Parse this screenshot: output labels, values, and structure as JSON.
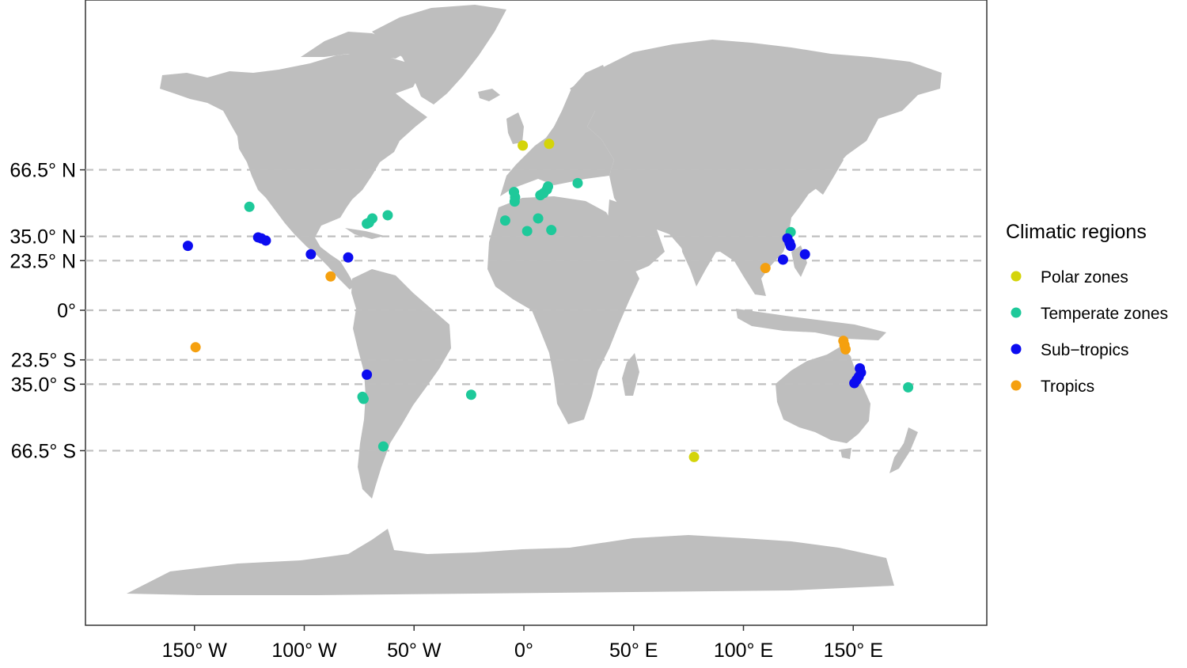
{
  "map": {
    "projection": "equirectangular",
    "lon_range": [
      -180,
      180
    ],
    "lat_range": [
      -90,
      90
    ],
    "x_ticks": [
      {
        "lon": -150,
        "label": "150° W"
      },
      {
        "lon": -100,
        "label": "100° W"
      },
      {
        "lon": -50,
        "label": "50° W"
      },
      {
        "lon": 0,
        "label": "0°"
      },
      {
        "lon": 50,
        "label": "50° E"
      },
      {
        "lon": 100,
        "label": "100° E"
      },
      {
        "lon": 150,
        "label": "150° E"
      }
    ],
    "lat_lines": [
      {
        "lat": 66.5,
        "label": "66.5° N"
      },
      {
        "lat": 35.0,
        "label": "35.0° N"
      },
      {
        "lat": 23.5,
        "label": "23.5° N"
      },
      {
        "lat": 0,
        "label": "0°"
      },
      {
        "lat": -23.5,
        "label": "23.5° S"
      },
      {
        "lat": -35.0,
        "label": "35.0° S"
      },
      {
        "lat": -66.5,
        "label": "66.5° S"
      }
    ],
    "land_color": "#bebebe",
    "gridline_color": "#bfbfbf"
  },
  "legend": {
    "title": "Climatic regions",
    "placement": "right",
    "items": [
      {
        "key": "polar",
        "label": "Polar zones",
        "color": "#d4d40a"
      },
      {
        "key": "temperate",
        "label": "Temperate zones",
        "color": "#1ec99a"
      },
      {
        "key": "subtropics",
        "label": "Sub−tropics",
        "color": "#0c0cf0"
      },
      {
        "key": "tropics",
        "label": "Tropics",
        "color": "#f5a00f"
      }
    ]
  },
  "sites": [
    {
      "lon": -0.5,
      "lat": 78.0,
      "region": "polar"
    },
    {
      "lon": 11.5,
      "lat": 78.8,
      "region": "polar"
    },
    {
      "lon": 77.5,
      "lat": -69.5,
      "region": "polar"
    },
    {
      "lon": -125.0,
      "lat": 49.0,
      "region": "temperate"
    },
    {
      "lon": -71.5,
      "lat": 41.0,
      "region": "temperate"
    },
    {
      "lon": -70.5,
      "lat": 41.5,
      "region": "temperate"
    },
    {
      "lon": -69.0,
      "lat": 43.5,
      "region": "temperate"
    },
    {
      "lon": -62.0,
      "lat": 45.0,
      "region": "temperate"
    },
    {
      "lon": -4.5,
      "lat": 56.0,
      "region": "temperate"
    },
    {
      "lon": -4.0,
      "lat": 53.5,
      "region": "temperate"
    },
    {
      "lon": -4.2,
      "lat": 51.5,
      "region": "temperate"
    },
    {
      "lon": 7.5,
      "lat": 54.5,
      "region": "temperate"
    },
    {
      "lon": 9.0,
      "lat": 55.5,
      "region": "temperate"
    },
    {
      "lon": 10.5,
      "lat": 57.2,
      "region": "temperate"
    },
    {
      "lon": 11.0,
      "lat": 58.6,
      "region": "temperate"
    },
    {
      "lon": 24.5,
      "lat": 60.2,
      "region": "temperate"
    },
    {
      "lon": -8.5,
      "lat": 42.5,
      "region": "temperate"
    },
    {
      "lon": 6.5,
      "lat": 43.5,
      "region": "temperate"
    },
    {
      "lon": 1.5,
      "lat": 37.5,
      "region": "temperate"
    },
    {
      "lon": 12.5,
      "lat": 38.0,
      "region": "temperate"
    },
    {
      "lon": 121.5,
      "lat": 37.0,
      "region": "temperate"
    },
    {
      "lon": 175.0,
      "lat": -36.5,
      "region": "temperate"
    },
    {
      "lon": -73.5,
      "lat": -41.0,
      "region": "temperate"
    },
    {
      "lon": -73.0,
      "lat": -42.0,
      "region": "temperate"
    },
    {
      "lon": -24.0,
      "lat": -40.0,
      "region": "temperate"
    },
    {
      "lon": -64.0,
      "lat": -64.5,
      "region": "temperate"
    },
    {
      "lon": -121.0,
      "lat": 34.5,
      "region": "subtropics"
    },
    {
      "lon": -119.5,
      "lat": 34.0,
      "region": "subtropics"
    },
    {
      "lon": -117.5,
      "lat": 33.0,
      "region": "subtropics"
    },
    {
      "lon": -153.0,
      "lat": 30.5,
      "region": "subtropics"
    },
    {
      "lon": -97.0,
      "lat": 26.5,
      "region": "subtropics"
    },
    {
      "lon": -80.0,
      "lat": 25.0,
      "region": "subtropics"
    },
    {
      "lon": 120.0,
      "lat": 34.0,
      "region": "subtropics"
    },
    {
      "lon": 121.0,
      "lat": 32.0,
      "region": "subtropics"
    },
    {
      "lon": 121.5,
      "lat": 30.5,
      "region": "subtropics"
    },
    {
      "lon": 118.0,
      "lat": 24.0,
      "region": "subtropics"
    },
    {
      "lon": 128.0,
      "lat": 26.5,
      "region": "subtropics"
    },
    {
      "lon": -71.5,
      "lat": -30.5,
      "region": "subtropics"
    },
    {
      "lon": 153.0,
      "lat": -27.5,
      "region": "subtropics"
    },
    {
      "lon": 153.5,
      "lat": -29.5,
      "region": "subtropics"
    },
    {
      "lon": 152.5,
      "lat": -31.5,
      "region": "subtropics"
    },
    {
      "lon": 151.5,
      "lat": -33.0,
      "region": "subtropics"
    },
    {
      "lon": 150.5,
      "lat": -34.5,
      "region": "subtropics"
    },
    {
      "lon": -88.0,
      "lat": 16.0,
      "region": "tropics"
    },
    {
      "lon": -149.5,
      "lat": -17.5,
      "region": "tropics"
    },
    {
      "lon": 110.0,
      "lat": 20.0,
      "region": "tropics"
    },
    {
      "lon": 145.5,
      "lat": -14.5,
      "region": "tropics"
    },
    {
      "lon": 146.0,
      "lat": -16.5,
      "region": "tropics"
    },
    {
      "lon": 146.5,
      "lat": -18.5,
      "region": "tropics"
    }
  ]
}
